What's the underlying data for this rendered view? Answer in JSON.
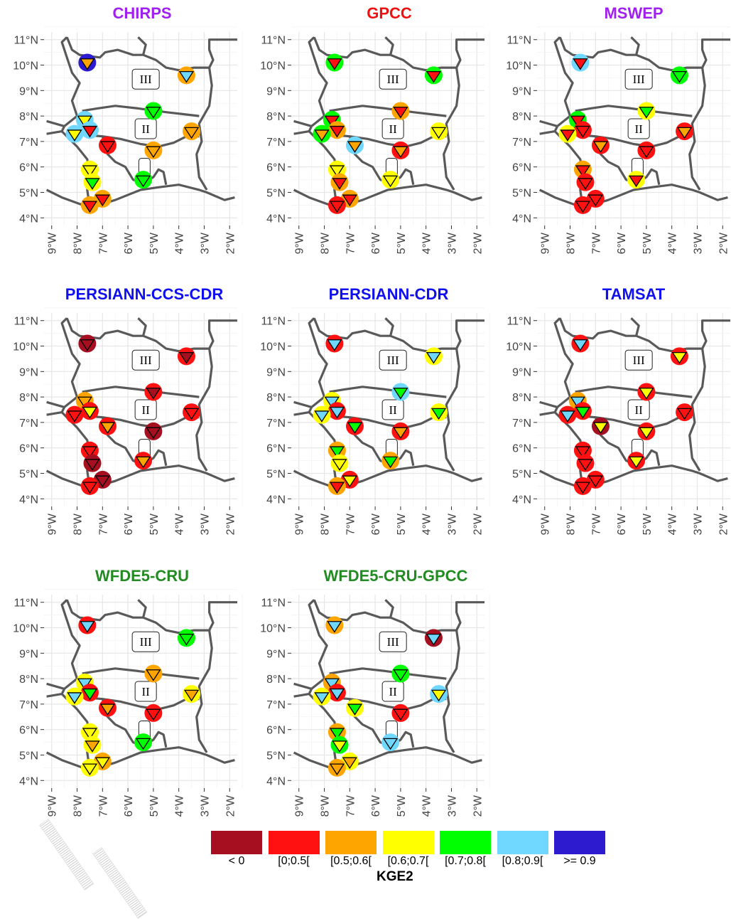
{
  "figure": {
    "legend": {
      "title": "KGE2",
      "classes": [
        {
          "label": "< 0",
          "color": "#A50F1F"
        },
        {
          "label": "[0;0.5[",
          "color": "#FF1111"
        },
        {
          "label": "[0.5;0.6[",
          "color": "#FFA500"
        },
        {
          "label": "[0.6;0.7[",
          "color": "#FFFF00"
        },
        {
          "label": "[0.7;0.8[",
          "color": "#00FF00"
        },
        {
          "label": "[0.8;0.9[",
          "color": "#70D8FF"
        },
        {
          "label": ">= 0.9",
          "color": "#2D1CCF"
        }
      ]
    },
    "zone_labels": [
      "III",
      "II",
      "I"
    ]
  },
  "chart_data": [
    {
      "type": "map",
      "title": "CHIRPS",
      "title_color": "#A020F0",
      "x_ticks": [
        "9°W",
        "8°W",
        "7°W",
        "6°W",
        "5°W",
        "4°W",
        "3°W",
        "2°W"
      ],
      "y_ticks": [
        "11°N",
        "10°N",
        "9°N",
        "8°N",
        "7°N",
        "6°N",
        "5°N",
        "4°N"
      ],
      "xlim": [
        -9,
        -2
      ],
      "ylim": [
        4,
        11
      ],
      "stations": [
        {
          "lon": -7.6,
          "lat": 10.1,
          "outer": ">= 0.9",
          "inner": "[0.5;0.6["
        },
        {
          "lon": -3.7,
          "lat": 9.6,
          "outer": "[0.5;0.6[",
          "inner": "[0.8;0.9["
        },
        {
          "lon": -5.0,
          "lat": 8.2,
          "outer": "[0.7;0.8[",
          "inner": "[0.7;0.8["
        },
        {
          "lon": -7.7,
          "lat": 7.85,
          "outer": "[0.8;0.9[",
          "inner": "[0.6;0.7["
        },
        {
          "lon": -7.5,
          "lat": 7.45,
          "outer": "[0.8;0.9[",
          "inner": "[0;0.5["
        },
        {
          "lon": -8.1,
          "lat": 7.3,
          "outer": "[0.8;0.9[",
          "inner": "[0.6;0.7["
        },
        {
          "lon": -3.5,
          "lat": 7.4,
          "outer": "[0.5;0.6[",
          "inner": "[0.5;0.6["
        },
        {
          "lon": -6.8,
          "lat": 6.85,
          "outer": "[0;0.5[",
          "inner": "[0;0.5["
        },
        {
          "lon": -5.0,
          "lat": 6.65,
          "outer": "[0.5;0.6[",
          "inner": "[0.5;0.6["
        },
        {
          "lon": -7.5,
          "lat": 5.9,
          "outer": "[0.6;0.7[",
          "inner": "[0.6;0.7["
        },
        {
          "lon": -5.4,
          "lat": 5.5,
          "outer": "[0.7;0.8[",
          "inner": "[0.7;0.8["
        },
        {
          "lon": -7.4,
          "lat": 5.4,
          "outer": "[0.6;0.7[",
          "inner": "[0.7;0.8["
        },
        {
          "lon": -7.0,
          "lat": 4.75,
          "outer": "[0.5;0.6[",
          "inner": "[0;0.5["
        },
        {
          "lon": -7.5,
          "lat": 4.5,
          "outer": "[0.5;0.6[",
          "inner": "[0;0.5["
        }
      ]
    },
    {
      "type": "map",
      "title": "GPCC",
      "title_color": "#EE1111",
      "x_ticks": [
        "9°W",
        "8°W",
        "7°W",
        "6°W",
        "5°W",
        "4°W",
        "3°W",
        "2°W"
      ],
      "y_ticks": [
        "11°N",
        "10°N",
        "9°N",
        "8°N",
        "7°N",
        "6°N",
        "5°N",
        "4°N"
      ],
      "xlim": [
        -9,
        -2
      ],
      "ylim": [
        4,
        11
      ],
      "stations": [
        {
          "lon": -7.6,
          "lat": 10.1,
          "outer": "[0.7;0.8[",
          "inner": "[0;0.5["
        },
        {
          "lon": -3.7,
          "lat": 9.6,
          "outer": "[0.7;0.8[",
          "inner": "[0;0.5["
        },
        {
          "lon": -5.0,
          "lat": 8.2,
          "outer": "[0.5;0.6[",
          "inner": "[0;0.5["
        },
        {
          "lon": -7.7,
          "lat": 7.85,
          "outer": "[0.7;0.8[",
          "inner": "[0;0.5["
        },
        {
          "lon": -7.5,
          "lat": 7.45,
          "outer": "[0.5;0.6[",
          "inner": "[0;0.5["
        },
        {
          "lon": -8.1,
          "lat": 7.3,
          "outer": "[0.7;0.8[",
          "inner": "[0.5;0.6["
        },
        {
          "lon": -3.5,
          "lat": 7.4,
          "outer": "[0.6;0.7[",
          "inner": "[0.6;0.7["
        },
        {
          "lon": -6.8,
          "lat": 6.85,
          "outer": "[0.8;0.9[",
          "inner": "[0.5;0.6["
        },
        {
          "lon": -5.0,
          "lat": 6.65,
          "outer": "[0;0.5[",
          "inner": "[0.5;0.6["
        },
        {
          "lon": -7.5,
          "lat": 5.9,
          "outer": "[0.6;0.7[",
          "inner": "[0.6;0.7["
        },
        {
          "lon": -5.4,
          "lat": 5.5,
          "outer": "[0.6;0.7[",
          "inner": "[0.6;0.7["
        },
        {
          "lon": -7.4,
          "lat": 5.4,
          "outer": "[0.5;0.6[",
          "inner": "[0;0.5["
        },
        {
          "lon": -7.0,
          "lat": 4.75,
          "outer": "[0.5;0.6[",
          "inner": "[0;0.5["
        },
        {
          "lon": -7.5,
          "lat": 4.5,
          "outer": "[0;0.5[",
          "inner": "[0;0.5["
        }
      ]
    },
    {
      "type": "map",
      "title": "MSWEP",
      "title_color": "#A020F0",
      "x_ticks": [
        "9°W",
        "8°W",
        "7°W",
        "6°W",
        "5°W",
        "4°W",
        "3°W",
        "2°W"
      ],
      "y_ticks": [
        "11°N",
        "10°N",
        "9°N",
        "8°N",
        "7°N",
        "6°N",
        "5°N",
        "4°N"
      ],
      "xlim": [
        -9,
        -2
      ],
      "ylim": [
        4,
        11
      ],
      "stations": [
        {
          "lon": -7.6,
          "lat": 10.1,
          "outer": "[0.8;0.9[",
          "inner": "[0;0.5["
        },
        {
          "lon": -3.7,
          "lat": 9.6,
          "outer": "[0.7;0.8[",
          "inner": "[0.7;0.8["
        },
        {
          "lon": -5.0,
          "lat": 8.2,
          "outer": "[0.6;0.7[",
          "inner": "[0.7;0.8["
        },
        {
          "lon": -7.7,
          "lat": 7.85,
          "outer": "[0.7;0.8[",
          "inner": "[0;0.5["
        },
        {
          "lon": -7.5,
          "lat": 7.45,
          "outer": "[0;0.5[",
          "inner": "[0;0.5["
        },
        {
          "lon": -8.1,
          "lat": 7.3,
          "outer": "[0.6;0.7[",
          "inner": "[0;0.5["
        },
        {
          "lon": -3.5,
          "lat": 7.4,
          "outer": "[0;0.5[",
          "inner": "[0.5;0.6["
        },
        {
          "lon": -6.8,
          "lat": 6.85,
          "outer": "[0;0.5[",
          "inner": "[0.5;0.6["
        },
        {
          "lon": -5.0,
          "lat": 6.65,
          "outer": "[0;0.5[",
          "inner": "[0;0.5["
        },
        {
          "lon": -7.5,
          "lat": 5.9,
          "outer": "[0.5;0.6[",
          "inner": "[0;0.5["
        },
        {
          "lon": -5.4,
          "lat": 5.5,
          "outer": "[0.6;0.7[",
          "inner": "[0;0.5["
        },
        {
          "lon": -7.4,
          "lat": 5.4,
          "outer": "[0;0.5[",
          "inner": "[0;0.5["
        },
        {
          "lon": -7.0,
          "lat": 4.75,
          "outer": "[0;0.5[",
          "inner": "[0;0.5["
        },
        {
          "lon": -7.5,
          "lat": 4.5,
          "outer": "[0;0.5[",
          "inner": "[0;0.5["
        }
      ]
    },
    {
      "type": "map",
      "title": "PERSIANN-CCS-CDR",
      "title_color": "#1010EE",
      "x_ticks": [
        "9°W",
        "8°W",
        "7°W",
        "6°W",
        "5°W",
        "4°W",
        "3°W",
        "2°W"
      ],
      "y_ticks": [
        "11°N",
        "10°N",
        "9°N",
        "8°N",
        "7°N",
        "6°N",
        "5°N",
        "4°N"
      ],
      "xlim": [
        -9,
        -2
      ],
      "ylim": [
        4,
        11
      ],
      "stations": [
        {
          "lon": -7.6,
          "lat": 10.1,
          "outer": "< 0",
          "inner": "< 0"
        },
        {
          "lon": -3.7,
          "lat": 9.6,
          "outer": "[0;0.5[",
          "inner": "< 0"
        },
        {
          "lon": -5.0,
          "lat": 8.2,
          "outer": "[0;0.5[",
          "inner": "< 0"
        },
        {
          "lon": -7.7,
          "lat": 7.85,
          "outer": "[0.5;0.6[",
          "inner": "[0.5;0.6["
        },
        {
          "lon": -7.5,
          "lat": 7.45,
          "outer": "[0;0.5[",
          "inner": "[0.6;0.7["
        },
        {
          "lon": -8.1,
          "lat": 7.3,
          "outer": "[0;0.5[",
          "inner": "[0;0.5["
        },
        {
          "lon": -3.5,
          "lat": 7.4,
          "outer": "[0;0.5[",
          "inner": "[0;0.5["
        },
        {
          "lon": -6.8,
          "lat": 6.85,
          "outer": "[0;0.5[",
          "inner": "[0.5;0.6["
        },
        {
          "lon": -5.0,
          "lat": 6.65,
          "outer": "< 0",
          "inner": "< 0"
        },
        {
          "lon": -7.5,
          "lat": 5.9,
          "outer": "[0;0.5[",
          "inner": "[0;0.5["
        },
        {
          "lon": -5.4,
          "lat": 5.5,
          "outer": "[0;0.5[",
          "inner": "[0.5;0.6["
        },
        {
          "lon": -7.4,
          "lat": 5.4,
          "outer": "< 0",
          "inner": "< 0"
        },
        {
          "lon": -7.0,
          "lat": 4.75,
          "outer": "< 0",
          "inner": "< 0"
        },
        {
          "lon": -7.5,
          "lat": 4.5,
          "outer": "[0;0.5[",
          "inner": "[0;0.5["
        }
      ]
    },
    {
      "type": "map",
      "title": "PERSIANN-CDR",
      "title_color": "#1010EE",
      "x_ticks": [
        "9°W",
        "8°W",
        "7°W",
        "6°W",
        "5°W",
        "4°W",
        "3°W",
        "2°W"
      ],
      "y_ticks": [
        "11°N",
        "10°N",
        "9°N",
        "8°N",
        "7°N",
        "6°N",
        "5°N",
        "4°N"
      ],
      "xlim": [
        -9,
        -2
      ],
      "ylim": [
        4,
        11
      ],
      "stations": [
        {
          "lon": -7.6,
          "lat": 10.1,
          "outer": "[0;0.5[",
          "inner": "[0.8;0.9["
        },
        {
          "lon": -3.7,
          "lat": 9.6,
          "outer": "[0.6;0.7[",
          "inner": "[0.8;0.9["
        },
        {
          "lon": -5.0,
          "lat": 8.2,
          "outer": "[0.8;0.9[",
          "inner": "[0.7;0.8["
        },
        {
          "lon": -7.7,
          "lat": 7.85,
          "outer": "[0.6;0.7[",
          "inner": "[0.8;0.9["
        },
        {
          "lon": -7.5,
          "lat": 7.45,
          "outer": "[0;0.5[",
          "inner": "[0.8;0.9["
        },
        {
          "lon": -8.1,
          "lat": 7.3,
          "outer": "[0.6;0.7[",
          "inner": "[0.8;0.9["
        },
        {
          "lon": -3.5,
          "lat": 7.4,
          "outer": "[0.6;0.7[",
          "inner": "[0.7;0.8["
        },
        {
          "lon": -6.8,
          "lat": 6.85,
          "outer": "[0;0.5[",
          "inner": "[0.7;0.8["
        },
        {
          "lon": -5.0,
          "lat": 6.65,
          "outer": "[0;0.5[",
          "inner": "[0.5;0.6["
        },
        {
          "lon": -7.5,
          "lat": 5.9,
          "outer": "[0.5;0.6[",
          "inner": "[0.7;0.8["
        },
        {
          "lon": -5.4,
          "lat": 5.5,
          "outer": "[0.5;0.6[",
          "inner": "[0.7;0.8["
        },
        {
          "lon": -7.4,
          "lat": 5.4,
          "outer": "[0.6;0.7[",
          "inner": "[0.6;0.7["
        },
        {
          "lon": -7.0,
          "lat": 4.75,
          "outer": "[0;0.5[",
          "inner": "[0.6;0.7["
        },
        {
          "lon": -7.5,
          "lat": 4.5,
          "outer": "[0.5;0.6[",
          "inner": "[0;0.5["
        }
      ]
    },
    {
      "type": "map",
      "title": "TAMSAT",
      "title_color": "#1010EE",
      "x_ticks": [
        "9°W",
        "8°W",
        "7°W",
        "6°W",
        "5°W",
        "4°W",
        "3°W",
        "2°W"
      ],
      "y_ticks": [
        "11°N",
        "10°N",
        "9°N",
        "8°N",
        "7°N",
        "6°N",
        "5°N",
        "4°N"
      ],
      "xlim": [
        -9,
        -2
      ],
      "ylim": [
        4,
        11
      ],
      "stations": [
        {
          "lon": -7.6,
          "lat": 10.1,
          "outer": "[0;0.5[",
          "inner": "[0.8;0.9["
        },
        {
          "lon": -3.7,
          "lat": 9.6,
          "outer": "[0;0.5[",
          "inner": "[0.6;0.7["
        },
        {
          "lon": -5.0,
          "lat": 8.2,
          "outer": "[0;0.5[",
          "inner": "[0.6;0.7["
        },
        {
          "lon": -7.7,
          "lat": 7.85,
          "outer": "[0.5;0.6[",
          "inner": "[0.8;0.9["
        },
        {
          "lon": -7.5,
          "lat": 7.45,
          "outer": "[0;0.5[",
          "inner": "[0.7;0.8["
        },
        {
          "lon": -8.1,
          "lat": 7.3,
          "outer": "[0;0.5[",
          "inner": "[0.8;0.9["
        },
        {
          "lon": -3.5,
          "lat": 7.4,
          "outer": "[0;0.5[",
          "inner": "[0;0.5["
        },
        {
          "lon": -6.8,
          "lat": 6.85,
          "outer": "< 0",
          "inner": "[0.6;0.7["
        },
        {
          "lon": -5.0,
          "lat": 6.65,
          "outer": "[0;0.5[",
          "inner": "[0.6;0.7["
        },
        {
          "lon": -7.5,
          "lat": 5.9,
          "outer": "[0;0.5[",
          "inner": "[0;0.5["
        },
        {
          "lon": -5.4,
          "lat": 5.5,
          "outer": "[0;0.5[",
          "inner": "[0.6;0.7["
        },
        {
          "lon": -7.4,
          "lat": 5.4,
          "outer": "[0;0.5[",
          "inner": "[0;0.5["
        },
        {
          "lon": -7.0,
          "lat": 4.75,
          "outer": "[0;0.5[",
          "inner": "[0;0.5["
        },
        {
          "lon": -7.5,
          "lat": 4.5,
          "outer": "[0;0.5[",
          "inner": "[0;0.5["
        }
      ]
    },
    {
      "type": "map",
      "title": "WFDE5-CRU",
      "title_color": "#228B22",
      "x_ticks": [
        "9°W",
        "8°W",
        "7°W",
        "6°W",
        "5°W",
        "4°W",
        "3°W",
        "2°W"
      ],
      "y_ticks": [
        "11°N",
        "10°N",
        "9°N",
        "8°N",
        "7°N",
        "6°N",
        "5°N",
        "4°N"
      ],
      "xlim": [
        -9,
        -2
      ],
      "ylim": [
        4,
        11
      ],
      "stations": [
        {
          "lon": -7.6,
          "lat": 10.1,
          "outer": "[0;0.5[",
          "inner": "[0.8;0.9["
        },
        {
          "lon": -3.7,
          "lat": 9.6,
          "outer": "[0.7;0.8[",
          "inner": "[0.7;0.8["
        },
        {
          "lon": -5.0,
          "lat": 8.2,
          "outer": "[0.5;0.6[",
          "inner": "[0.5;0.6["
        },
        {
          "lon": -7.7,
          "lat": 7.85,
          "outer": "[0.6;0.7[",
          "inner": "[0.8;0.9["
        },
        {
          "lon": -7.5,
          "lat": 7.45,
          "outer": "[0;0.5[",
          "inner": "[0.7;0.8["
        },
        {
          "lon": -8.1,
          "lat": 7.3,
          "outer": "[0.6;0.7[",
          "inner": "[0.8;0.9["
        },
        {
          "lon": -3.5,
          "lat": 7.4,
          "outer": "[0.6;0.7[",
          "inner": "[0.5;0.6["
        },
        {
          "lon": -6.8,
          "lat": 6.85,
          "outer": "[0;0.5[",
          "inner": "[0.5;0.6["
        },
        {
          "lon": -5.0,
          "lat": 6.65,
          "outer": "[0;0.5[",
          "inner": "[0;0.5["
        },
        {
          "lon": -7.5,
          "lat": 5.9,
          "outer": "[0.6;0.7[",
          "inner": "[0.6;0.7["
        },
        {
          "lon": -5.4,
          "lat": 5.5,
          "outer": "[0.7;0.8[",
          "inner": "[0.7;0.8["
        },
        {
          "lon": -7.4,
          "lat": 5.4,
          "outer": "[0.6;0.7[",
          "inner": "[0.5;0.6["
        },
        {
          "lon": -7.0,
          "lat": 4.75,
          "outer": "[0.5;0.6[",
          "inner": "[0.6;0.7["
        },
        {
          "lon": -7.5,
          "lat": 4.5,
          "outer": "[0.6;0.7[",
          "inner": "[0.6;0.7["
        }
      ]
    },
    {
      "type": "map",
      "title": "WFDE5-CRU-GPCC",
      "title_color": "#228B22",
      "x_ticks": [
        "9°W",
        "8°W",
        "7°W",
        "6°W",
        "5°W",
        "4°W",
        "3°W",
        "2°W"
      ],
      "y_ticks": [
        "11°N",
        "10°N",
        "9°N",
        "8°N",
        "7°N",
        "6°N",
        "5°N",
        "4°N"
      ],
      "xlim": [
        -9,
        -2
      ],
      "ylim": [
        4,
        11
      ],
      "stations": [
        {
          "lon": -7.6,
          "lat": 10.1,
          "outer": "[0.5;0.6[",
          "inner": "[0.8;0.9["
        },
        {
          "lon": -3.7,
          "lat": 9.6,
          "outer": "< 0",
          "inner": "[0.8;0.9["
        },
        {
          "lon": -5.0,
          "lat": 8.2,
          "outer": "[0.7;0.8[",
          "inner": "[0.7;0.8["
        },
        {
          "lon": -7.7,
          "lat": 7.85,
          "outer": "[0.5;0.6[",
          "inner": "[0.8;0.9["
        },
        {
          "lon": -7.5,
          "lat": 7.45,
          "outer": "[0;0.5[",
          "inner": "[0.8;0.9["
        },
        {
          "lon": -8.1,
          "lat": 7.3,
          "outer": "[0.6;0.7[",
          "inner": "[0.8;0.9["
        },
        {
          "lon": -3.5,
          "lat": 7.4,
          "outer": "[0.8;0.9[",
          "inner": "[0.6;0.7["
        },
        {
          "lon": -6.8,
          "lat": 6.85,
          "outer": "[0.6;0.7[",
          "inner": "[0.7;0.8["
        },
        {
          "lon": -5.0,
          "lat": 6.65,
          "outer": "[0;0.5[",
          "inner": "[0;0.5["
        },
        {
          "lon": -7.5,
          "lat": 5.9,
          "outer": "[0.5;0.6[",
          "inner": "[0.7;0.8["
        },
        {
          "lon": -5.4,
          "lat": 5.5,
          "outer": "[0.8;0.9[",
          "inner": "[0.8;0.9["
        },
        {
          "lon": -7.4,
          "lat": 5.4,
          "outer": "[0.7;0.8[",
          "inner": "[0.6;0.7["
        },
        {
          "lon": -7.0,
          "lat": 4.75,
          "outer": "[0.6;0.7[",
          "inner": "[0.5;0.6["
        },
        {
          "lon": -7.5,
          "lat": 4.5,
          "outer": "[0.5;0.6[",
          "inner": "[0.5;0.6["
        }
      ]
    }
  ]
}
